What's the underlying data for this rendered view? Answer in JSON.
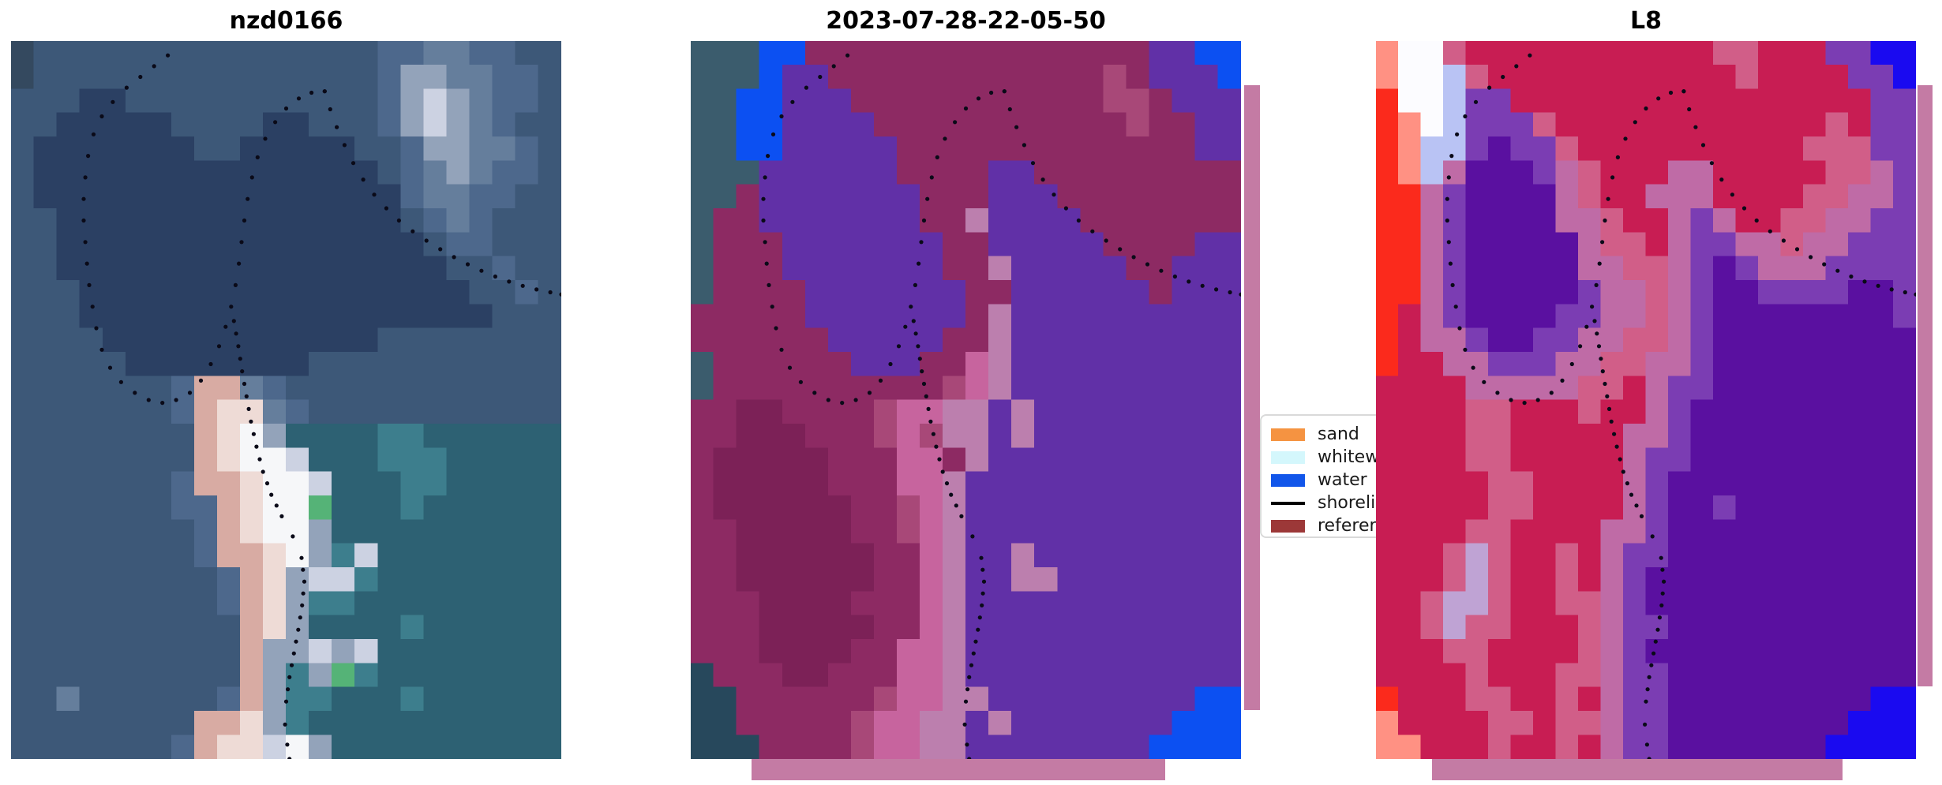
{
  "figure": {
    "background": "#ffffff",
    "shoreline_dot_color": "#0a0a18",
    "buffer_strip_color": "#c47ba4"
  },
  "panels": [
    {
      "title": "nzd0166",
      "kind": "rgb-satellite-image",
      "palette": {
        "a": "#2b4063",
        "b": "#3d5878",
        "c": "#4d688c",
        "d": "#657e9c",
        "e": "#93a3ba",
        "f": "#ccd2e2",
        "g": "#d8aba3",
        "h": "#eedbd6",
        "i": "#f6f7f9",
        "j": "#2d6173",
        "k": "#3d7e8d",
        "l": "#55b377",
        "m": "#34495f"
      },
      "grid": [
        "mbbbbbbbbbbbbbbbccddccbb",
        "mbbbbbbbbbbbbbbbceeddccb",
        "bbbaabbbbbbbbbbbcefedccb",
        "bbaaaaabbbbaabbbcefedcbb",
        "baaaaaaabbaaaaabbceeddcb",
        "baaaaaaaaaaaaaaabcdedccb",
        "baaaaaaaaaaaaaaaacddccbb",
        "bbaaaaaaaaaaaaaaabcdcbbb",
        "bbaaaaaaaaaaaaaaaabccbbb",
        "bbaaaaaaaaaaaaaaaaabbcbb",
        "bbbaaaaaaaaaaaaaaaaabbcb",
        "bbbaaaaaaaaaaaaaaaaaabbb",
        "bbbbaaaaaaaaaaaabbbbbbbb",
        "bbbbbaaaaaaaabbbbbbbbbbb",
        "bbbbbbbcggdcbbbbbbbbbbbb",
        "bbbbbbbcghhdcbbbbbbbbbbb",
        "bbbbbbbbghiejjjjkkjjjjjj",
        "bbbbbbbbghiifjjjkkkjjjjj",
        "bbbbbbbcgghiifjjjkkjjjjj",
        "bbbbbbbccghiiljjjkjjjjjj",
        "bbbbbbbbcghiiejjjjjjjjjj",
        "bbbbbbbbcgghiekfjjjjjjjj",
        "bbbbbbbbbcgheffkjjjjjjjj",
        "bbbbbbbbbcghekkjjjjjjjjj",
        "bbbbbbbbbbghejjjjkjjjjjj",
        "bbbbbbbbbbgeefefjjjjjjjj",
        "bbbbbbbbbbgekelkjjjjjjjj",
        "bbdbbbbbbcgekkjjjkjjjjjj",
        "bbbbbbbbgghekjjjjjjjjjjj",
        "bbbbbbbcghhfiejjjjjjjjjj"
      ]
    },
    {
      "title": "2023-07-28-22-05-50",
      "kind": "classified-image",
      "palette": {
        "t": "#3b5c6d",
        "u": "#27485c",
        "B": "#0c50f2",
        "p": "#6130a7",
        "n": "#8d2a63",
        "o": "#7c2157",
        "r": "#a84878",
        "s": "#c7649e",
        "v": "#bc7fae"
      },
      "grid": [
        "tttBBnnnnnnnnnnnnnnnppBB",
        "tttBppnnnnnnnnnnnnrnpppB",
        "ttBBpppnnnnnnnnnnnrrnppp",
        "ttBBppppnnnnnnnnnnnrnnpp",
        "ttBBpppppnnnnnnnnnnnnnpp",
        "tttppppppnnnnppnnnnnnnnn",
        "ttnpppppppnnnpppnnnnnnnn",
        "tnnpppppppnnvppppnnnnnnn",
        "tnnnpppppppnnpppppnnnnpp",
        "tnnnpppppppnnvpppppnnppp",
        "tnnnnpppppppnnppppppnppp",
        "nnnnnpppppppnvpppppppppp",
        "nnnnnnpppppnnvpppppppppp",
        "tnnnnnnpppnnsvpppppppppp",
        "tnnnnnnnnnnrsvpppppppppp",
        "nnoonnnnrssvvpvppppppppp",
        "nnooonnnrsrvvpvppppppppp",
        "nooooonnnssnvppppppppppp",
        "nooooonnnssvpppppppppppp",
        "noooooonnrsvpppppppppppp",
        "nnooooonnrsvpppppppppppp",
        "nnoooooonnsvppvppppppppp",
        "nnoooooonnsvppvvpppppppp",
        "nnnoooonnnsvpppppppppppp",
        "nnnooooonnsvpppppppppppp",
        "nnnoooonnssvpppppppppppp",
        "unnnoonnnssvpppppppppppp",
        "uunnnnnnrssvvpppppppppBB",
        "uunnnnnrssvvpvpppppppBBB",
        "uuunnnnrssvvppppppppBBBB"
      ]
    },
    {
      "title": "L8",
      "kind": "false-color-image",
      "palette": {
        "R": "#fb2a1c",
        "S": "#ff9183",
        "W": "#fcfcff",
        "L": "#b9c3f4",
        "C": "#c81d53",
        "F": "#d15e88",
        "M": "#bf6ba6",
        "P": "#5a10a0",
        "Q": "#7b3db3",
        "g": "#bfa3d4",
        "2": "#1a0af0"
      },
      "grid": [
        "SWWFCCCCCCCCCCCFFCCCQQ22",
        "SWWLFCCCCCCCCCCCFCCCCQQ2",
        "RWWLQQCCCCCCCCCCCCCCCCQQ",
        "RSWLQQQFCCCCCCCCCCCCFCQQ",
        "RSLLQPQQFCCCCCCCCCCFFFQQ",
        "RSLMPPPQMFCCCMMCCCCCFFMQ",
        "RRMQPPPPMFCCMMMCCCCFFMMQ",
        "RRMQPPPPMMFCCMQMCCFFMMQQ",
        "RRMQPPPPPMFFCMQQMMFMMQQQ",
        "RRMQPPPPPMMFFMQPQMMMQQQQ",
        "RRMQPPPPPQMMFMQPPQQQQPPQ",
        "RCMQPPPPQQMMFMQPPPPPPPPQ",
        "RCMMQPPQQMMFFMQPPPPPPPPP",
        "RCCMMQQQMMFFMMQPPPPPPPPP",
        "CCCCMMMMMFFCMQQPPPPPPPPP",
        "CCCCFFCCCFCCMQPPPPPPPPPP",
        "CCCCFFCCCCCMMQPPPPPPPPPP",
        "CCCCFFCCCCCMQQPPPPPPPPPP",
        "CCCCCFFCCCCMQPPPPPPPPPPP",
        "CCCCCFFCCCCMQPPQPPPPPPPP",
        "CCCCFFCCCCMMQPPPPPPPPPPP",
        "CCCFgFCCFCMQQPPPPPPPPPPP",
        "CCCFgFCCFCMQPPPPPPPPPPPP",
        "CCFggFCCFFMQPPPPPPPPPPPP",
        "CCFgFFCCCFMQQPPPPPPPPPPP",
        "CCCFFCCCCFMQPPPPPPPPPPPP",
        "CCCCFCCCFFMQQPPPPPPPPPPP",
        "RCCCFFCCFCMQQPPPPPPPPP22",
        "SCCCCFFCFFMQQPPPPPPPP222",
        "SSCCCFCCFCMQQPPPPPPP2222"
      ]
    }
  ],
  "shoreline_paths": [
    [
      [
        28.5,
        2
      ],
      [
        26,
        3.5
      ],
      [
        23.5,
        5
      ],
      [
        21,
        6.5
      ],
      [
        18.5,
        8.5
      ],
      [
        16.5,
        10.5
      ],
      [
        15,
        13
      ],
      [
        14,
        16
      ],
      [
        13.5,
        19
      ],
      [
        13.2,
        22
      ],
      [
        13.2,
        25
      ],
      [
        13.5,
        28
      ],
      [
        13.8,
        31
      ],
      [
        14.2,
        34
      ],
      [
        14.8,
        37
      ],
      [
        15.5,
        40
      ],
      [
        16.5,
        43
      ],
      [
        18,
        45.5
      ],
      [
        20,
        47.5
      ],
      [
        22.5,
        49
      ],
      [
        25,
        50
      ],
      [
        27.5,
        50.4
      ],
      [
        30,
        50
      ],
      [
        32.5,
        49
      ],
      [
        34.5,
        47.3
      ],
      [
        36.3,
        45
      ],
      [
        37.8,
        42.5
      ],
      [
        39,
        39.8
      ],
      [
        40,
        37
      ],
      [
        40.8,
        34
      ],
      [
        41.4,
        31
      ],
      [
        41.9,
        28
      ],
      [
        42.4,
        25
      ],
      [
        43,
        22
      ],
      [
        43.8,
        19
      ],
      [
        44.8,
        16.2
      ],
      [
        46.2,
        13.6
      ],
      [
        48,
        11.3
      ],
      [
        50,
        9.4
      ],
      [
        52.3,
        8
      ],
      [
        54.6,
        7.2
      ],
      [
        57,
        7
      ]
    ],
    [
      [
        57,
        7
      ],
      [
        58,
        9.5
      ],
      [
        59.2,
        12
      ],
      [
        60.6,
        14.5
      ],
      [
        62.2,
        17
      ],
      [
        64,
        19.3
      ],
      [
        66,
        21.4
      ],
      [
        68.2,
        23.3
      ],
      [
        70.5,
        25
      ],
      [
        73,
        26.5
      ],
      [
        75.5,
        27.8
      ],
      [
        78,
        29
      ],
      [
        80.5,
        30.1
      ],
      [
        83,
        31.1
      ],
      [
        85.5,
        32
      ],
      [
        88,
        32.8
      ],
      [
        90.5,
        33.5
      ],
      [
        93,
        34.1
      ],
      [
        95.5,
        34.6
      ],
      [
        98,
        35
      ],
      [
        100,
        35.3
      ]
    ],
    [
      [
        40.5,
        39
      ],
      [
        41.3,
        42.5
      ],
      [
        42,
        46
      ],
      [
        42.8,
        49.5
      ],
      [
        43.6,
        53
      ],
      [
        44.6,
        56.5
      ],
      [
        45.8,
        60
      ],
      [
        47.3,
        63.2
      ],
      [
        49.2,
        66.2
      ],
      [
        51.2,
        69
      ],
      [
        52.8,
        72
      ],
      [
        53.3,
        75.3
      ],
      [
        52.9,
        78.6
      ],
      [
        52.2,
        82
      ],
      [
        51.4,
        85.3
      ],
      [
        50.6,
        88.6
      ],
      [
        50,
        92
      ],
      [
        49.8,
        95.2
      ],
      [
        50.2,
        98
      ],
      [
        50.6,
        100
      ]
    ]
  ],
  "legend": {
    "items": [
      {
        "label": "sand",
        "swatch": "#f59341",
        "type": "patch"
      },
      {
        "label": "whitewater",
        "swatch": "#d4f7fc",
        "type": "patch"
      },
      {
        "label": "water",
        "swatch": "#1256ea",
        "type": "patch"
      },
      {
        "label": "shoreline",
        "swatch": "#000000",
        "type": "line"
      },
      {
        "label": "reference shoreline",
        "swatch": "#9c3838",
        "type": "patch"
      }
    ]
  }
}
